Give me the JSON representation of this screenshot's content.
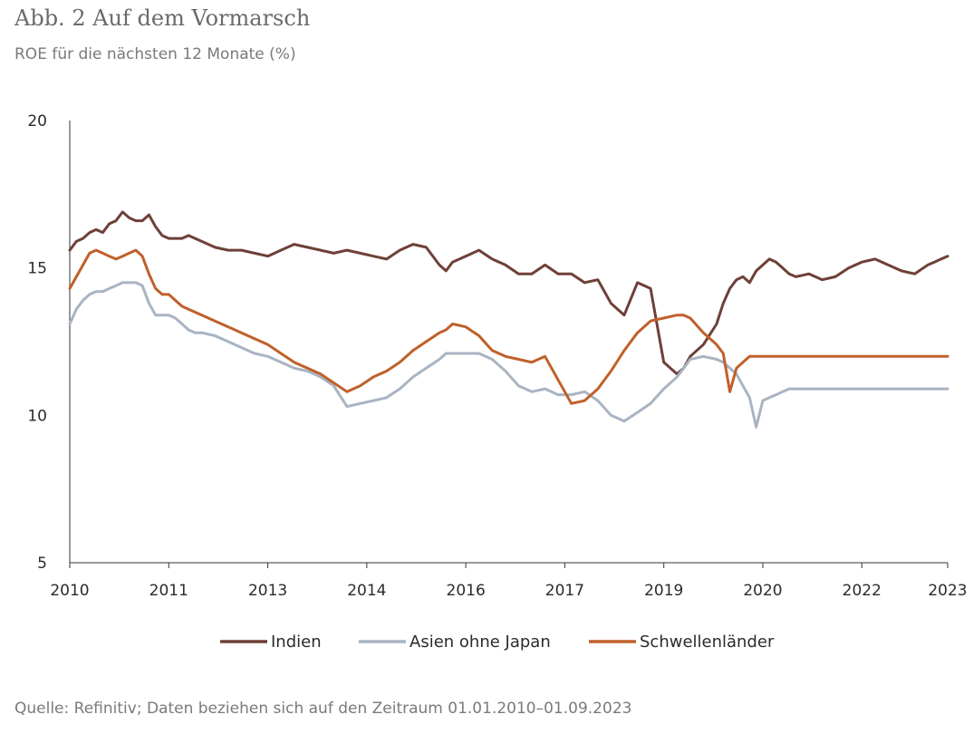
{
  "title": "Abb. 2 Auf dem Vormarsch",
  "subtitle": "ROE für die nächsten 12 Monate (%)",
  "source": "Quelle: Refinitiv; Daten beziehen sich auf den Zeitraum 01.01.2010–01.09.2023",
  "chart_data": {
    "type": "line",
    "title": "Abb. 2 Auf dem Vormarsch",
    "ylabel": "ROE für die nächsten 12 Monate (%)",
    "ylim": [
      5,
      20
    ],
    "yticks": [
      5,
      10,
      15,
      20
    ],
    "xlim": [
      2010,
      2023.3
    ],
    "xticks": [
      {
        "value": 2010,
        "label": "2010"
      },
      {
        "value": 2011.5,
        "label": "2011"
      },
      {
        "value": 2013,
        "label": "2013"
      },
      {
        "value": 2014.5,
        "label": "2014"
      },
      {
        "value": 2016,
        "label": "2016"
      },
      {
        "value": 2017.5,
        "label": "2017"
      },
      {
        "value": 2019,
        "label": "2019"
      },
      {
        "value": 2020.5,
        "label": "2020"
      },
      {
        "value": 2022,
        "label": "2022"
      },
      {
        "value": 2023.3,
        "label": "2023"
      }
    ],
    "grid": false,
    "legend": "bottom",
    "series": [
      {
        "name": "Indien",
        "color": "#6e4038",
        "x": [
          2010.0,
          2010.1,
          2010.2,
          2010.3,
          2010.4,
          2010.5,
          2010.6,
          2010.7,
          2010.8,
          2010.9,
          2011.0,
          2011.1,
          2011.2,
          2011.3,
          2011.4,
          2011.5,
          2011.6,
          2011.7,
          2011.8,
          2011.9,
          2012.0,
          2012.2,
          2012.4,
          2012.6,
          2012.8,
          2013.0,
          2013.2,
          2013.4,
          2013.6,
          2013.8,
          2014.0,
          2014.2,
          2014.4,
          2014.6,
          2014.8,
          2015.0,
          2015.2,
          2015.4,
          2015.6,
          2015.7,
          2015.8,
          2016.0,
          2016.2,
          2016.4,
          2016.6,
          2016.8,
          2017.0,
          2017.2,
          2017.4,
          2017.6,
          2017.8,
          2018.0,
          2018.2,
          2018.4,
          2018.6,
          2018.8,
          2019.0,
          2019.2,
          2019.3,
          2019.4,
          2019.6,
          2019.8,
          2019.9,
          2020.0,
          2020.1,
          2020.2,
          2020.3,
          2020.4,
          2020.5,
          2020.6,
          2020.7,
          2020.8,
          2020.9,
          2021.0,
          2021.2,
          2021.4,
          2021.6,
          2021.8,
          2022.0,
          2022.2,
          2022.4,
          2022.6,
          2022.8,
          2023.0,
          2023.1,
          2023.2,
          2023.3
        ],
        "values": [
          15.6,
          15.9,
          16.0,
          16.2,
          16.3,
          16.2,
          16.5,
          16.6,
          16.9,
          16.7,
          16.6,
          16.6,
          16.8,
          16.4,
          16.1,
          16.0,
          16.0,
          16.0,
          16.1,
          16.0,
          15.9,
          15.7,
          15.6,
          15.6,
          15.5,
          15.4,
          15.6,
          15.8,
          15.7,
          15.6,
          15.5,
          15.6,
          15.5,
          15.4,
          15.3,
          15.6,
          15.8,
          15.7,
          15.1,
          14.9,
          15.2,
          15.4,
          15.6,
          15.3,
          15.1,
          14.8,
          14.8,
          15.1,
          14.8,
          14.8,
          14.5,
          14.6,
          13.8,
          13.4,
          14.5,
          14.3,
          11.8,
          11.4,
          11.6,
          12.0,
          12.4,
          13.1,
          13.8,
          14.3,
          14.6,
          14.7,
          14.5,
          14.9,
          15.1,
          15.3,
          15.2,
          15.0,
          14.8,
          14.7,
          14.8,
          14.6,
          14.7,
          15.0,
          15.2,
          15.3,
          15.1,
          14.9,
          14.8,
          15.1,
          15.2,
          15.3,
          15.4
        ]
      },
      {
        "name": "Asien ohne Japan",
        "color": "#a9b4c2",
        "x": [
          2010.0,
          2010.1,
          2010.2,
          2010.3,
          2010.4,
          2010.5,
          2010.6,
          2010.7,
          2010.8,
          2010.9,
          2011.0,
          2011.1,
          2011.2,
          2011.3,
          2011.4,
          2011.5,
          2011.6,
          2011.7,
          2011.8,
          2011.9,
          2012.0,
          2012.2,
          2012.4,
          2012.6,
          2012.8,
          2013.0,
          2013.2,
          2013.4,
          2013.6,
          2013.8,
          2014.0,
          2014.2,
          2014.4,
          2014.6,
          2014.8,
          2015.0,
          2015.2,
          2015.4,
          2015.6,
          2015.7,
          2015.8,
          2016.0,
          2016.2,
          2016.4,
          2016.6,
          2016.8,
          2017.0,
          2017.2,
          2017.4,
          2017.6,
          2017.8,
          2018.0,
          2018.2,
          2018.4,
          2018.6,
          2018.8,
          2019.0,
          2019.2,
          2019.3,
          2019.4,
          2019.6,
          2019.8,
          2019.9,
          2020.0,
          2020.1,
          2020.2,
          2020.3,
          2020.4,
          2020.5,
          2020.6,
          2020.7,
          2020.8,
          2020.9,
          2021.0,
          2021.2,
          2021.4,
          2021.6,
          2021.8,
          2022.0,
          2022.2,
          2022.4,
          2022.6,
          2022.8,
          2023.0,
          2023.1,
          2023.2,
          2023.3
        ],
        "values": [
          13.1,
          13.6,
          13.9,
          14.1,
          14.2,
          14.2,
          14.3,
          14.4,
          14.5,
          14.5,
          14.5,
          14.4,
          13.8,
          13.4,
          13.4,
          13.4,
          13.3,
          13.1,
          12.9,
          12.8,
          12.8,
          12.7,
          12.5,
          12.3,
          12.1,
          12.0,
          11.8,
          11.6,
          11.5,
          11.3,
          11.0,
          10.3,
          10.4,
          10.5,
          10.6,
          10.9,
          11.3,
          11.6,
          11.9,
          12.1,
          12.1,
          12.1,
          12.1,
          11.9,
          11.5,
          11.0,
          10.8,
          10.9,
          10.7,
          10.7,
          10.8,
          10.5,
          10.0,
          9.8,
          10.1,
          10.4,
          10.9,
          11.3,
          11.6,
          11.9,
          12.0,
          11.9,
          11.8,
          11.6,
          11.4,
          11.0,
          10.6,
          9.6,
          10.5,
          10.6,
          10.7,
          10.8,
          10.9,
          10.9,
          10.9,
          10.9,
          10.9,
          10.9,
          10.9,
          10.9,
          10.9,
          10.9,
          10.9,
          10.9,
          10.9,
          10.9,
          10.9
        ]
      },
      {
        "name": "Schwellenländer",
        "color": "#c0602a",
        "x": [
          2010.0,
          2010.1,
          2010.2,
          2010.3,
          2010.4,
          2010.5,
          2010.6,
          2010.7,
          2010.8,
          2010.9,
          2011.0,
          2011.1,
          2011.2,
          2011.3,
          2011.4,
          2011.5,
          2011.6,
          2011.7,
          2011.8,
          2011.9,
          2012.0,
          2012.2,
          2012.4,
          2012.6,
          2012.8,
          2013.0,
          2013.2,
          2013.4,
          2013.6,
          2013.8,
          2014.0,
          2014.2,
          2014.4,
          2014.6,
          2014.8,
          2015.0,
          2015.2,
          2015.4,
          2015.6,
          2015.7,
          2015.8,
          2016.0,
          2016.2,
          2016.4,
          2016.6,
          2016.8,
          2017.0,
          2017.2,
          2017.4,
          2017.6,
          2017.8,
          2018.0,
          2018.2,
          2018.4,
          2018.6,
          2018.8,
          2019.0,
          2019.2,
          2019.3,
          2019.4,
          2019.6,
          2019.8,
          2019.9,
          2020.0,
          2020.1,
          2020.2,
          2020.3,
          2020.4,
          2020.5,
          2020.6,
          2020.7,
          2020.8,
          2020.9,
          2021.0,
          2021.2,
          2021.4,
          2021.6,
          2021.8,
          2022.0,
          2022.2,
          2022.4,
          2022.6,
          2022.8,
          2023.0,
          2023.1,
          2023.2,
          2023.3
        ],
        "values": [
          14.3,
          14.7,
          15.1,
          15.5,
          15.6,
          15.5,
          15.4,
          15.3,
          15.4,
          15.5,
          15.6,
          15.4,
          14.8,
          14.3,
          14.1,
          14.1,
          13.9,
          13.7,
          13.6,
          13.5,
          13.4,
          13.2,
          13.0,
          12.8,
          12.6,
          12.4,
          12.1,
          11.8,
          11.6,
          11.4,
          11.1,
          10.8,
          11.0,
          11.3,
          11.5,
          11.8,
          12.2,
          12.5,
          12.8,
          12.9,
          13.1,
          13.0,
          12.7,
          12.2,
          12.0,
          11.9,
          11.8,
          12.0,
          11.2,
          10.4,
          10.5,
          10.9,
          11.5,
          12.2,
          12.8,
          13.2,
          13.3,
          13.4,
          13.4,
          13.3,
          12.8,
          12.4,
          12.1,
          10.8,
          11.6,
          11.8,
          12.0,
          12.0,
          12.0,
          12.0,
          12.0,
          12.0,
          12.0,
          12.0,
          12.0,
          12.0,
          12.0,
          12.0,
          12.0,
          12.0,
          12.0,
          12.0,
          12.0,
          12.0,
          12.0,
          12.0,
          12.0
        ]
      }
    ]
  }
}
